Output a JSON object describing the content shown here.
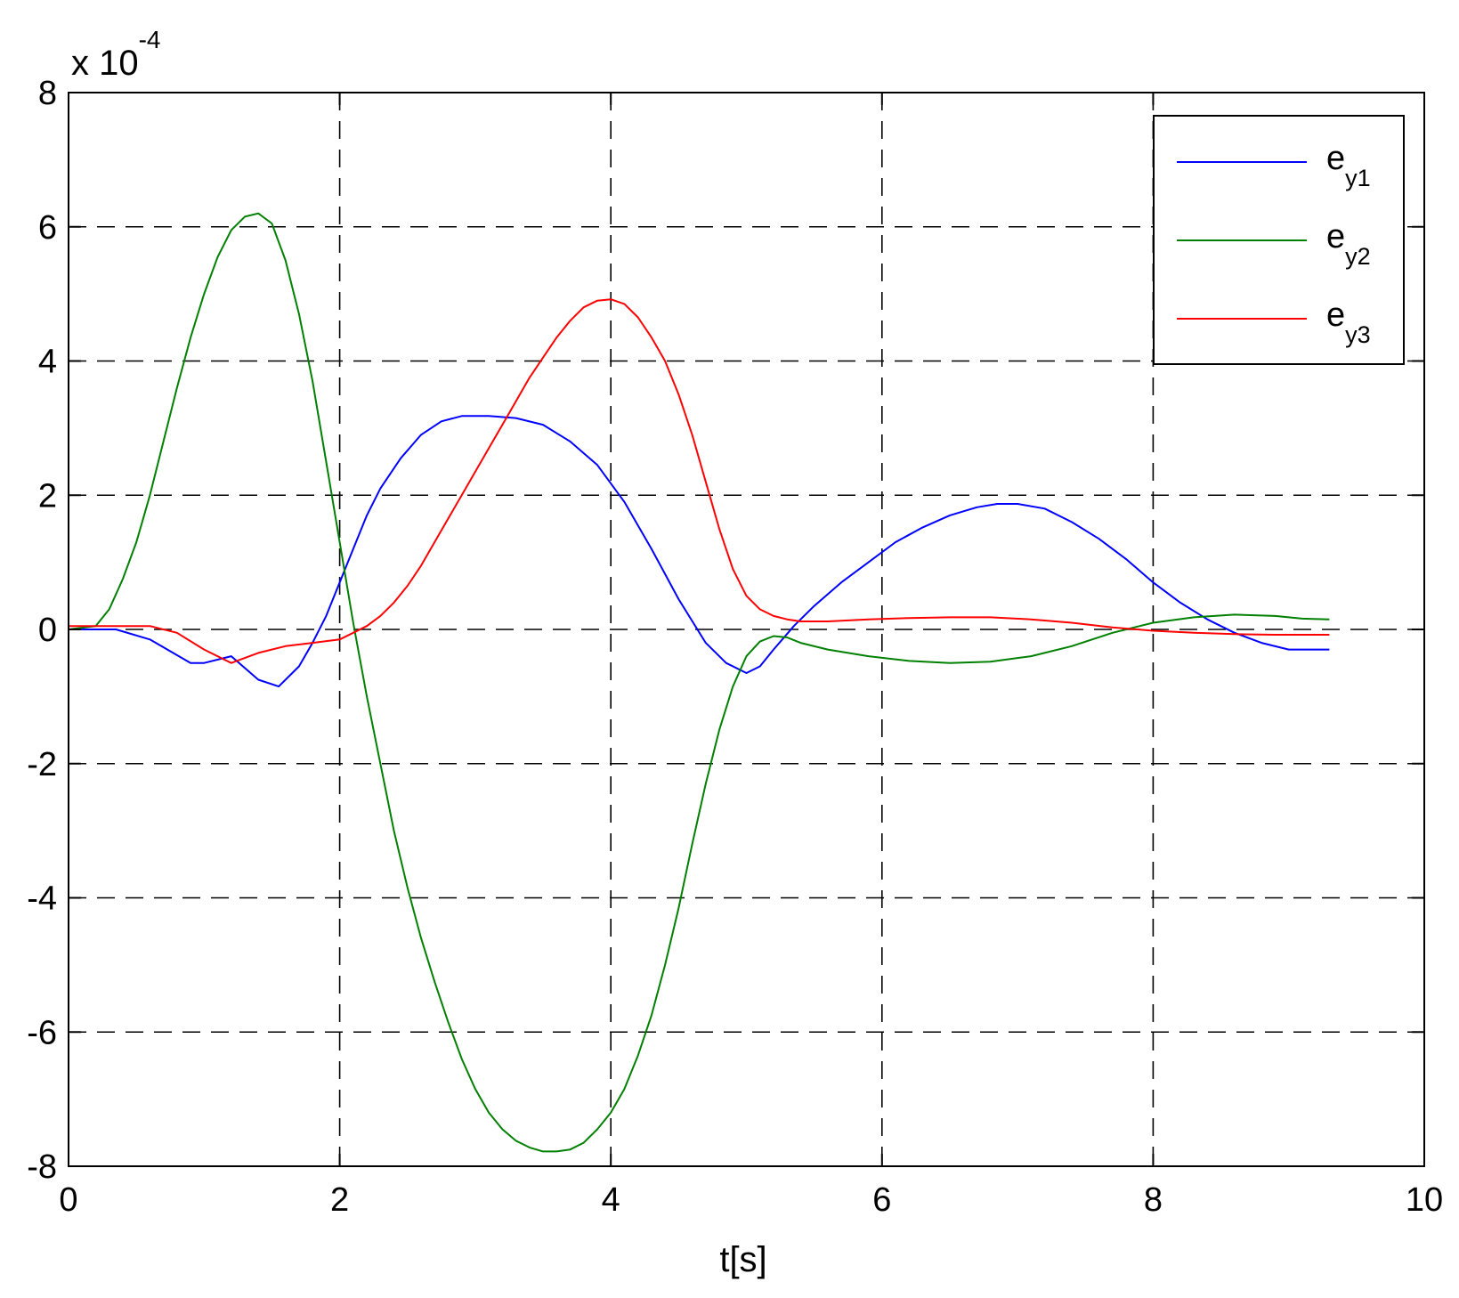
{
  "chart_data": {
    "type": "line",
    "xlabel": "t[s]",
    "ylabel": "",
    "y_multiplier": "x 10",
    "y_multiplier_exponent": "-4",
    "xlim": [
      0,
      10
    ],
    "ylim": [
      -8,
      8
    ],
    "x_ticks": [
      0,
      2,
      4,
      6,
      8,
      10
    ],
    "y_ticks": [
      -8,
      -6,
      -4,
      -2,
      0,
      2,
      4,
      6,
      8
    ],
    "x_tick_labels": [
      "0",
      "2",
      "4",
      "6",
      "8",
      "10"
    ],
    "y_tick_labels": [
      "-8",
      "-6",
      "-4",
      "-2",
      "0",
      "2",
      "4",
      "6",
      "8"
    ],
    "grid": true,
    "grid_style": "dashed",
    "legend_position": "top-right",
    "series": [
      {
        "name": "e",
        "subscript": "y1",
        "color": "#0000ff",
        "x": [
          0,
          0.35,
          0.6,
          0.9,
          1.0,
          1.2,
          1.4,
          1.55,
          1.7,
          1.8,
          1.9,
          2.0,
          2.1,
          2.2,
          2.3,
          2.45,
          2.6,
          2.75,
          2.9,
          3.1,
          3.3,
          3.5,
          3.7,
          3.9,
          4.1,
          4.3,
          4.5,
          4.7,
          4.85,
          5.0,
          5.1,
          5.2,
          5.35,
          5.5,
          5.7,
          5.9,
          6.1,
          6.3,
          6.5,
          6.7,
          6.85,
          7.0,
          7.2,
          7.4,
          7.6,
          7.8,
          8.0,
          8.2,
          8.4,
          8.6,
          8.8,
          9.0,
          9.2,
          9.3
        ],
        "y": [
          0,
          0,
          -0.15,
          -0.5,
          -0.5,
          -0.4,
          -0.75,
          -0.85,
          -0.55,
          -0.2,
          0.2,
          0.7,
          1.2,
          1.7,
          2.1,
          2.55,
          2.9,
          3.1,
          3.18,
          3.18,
          3.15,
          3.05,
          2.8,
          2.45,
          1.9,
          1.2,
          0.45,
          -0.2,
          -0.5,
          -0.65,
          -0.55,
          -0.3,
          0.05,
          0.35,
          0.7,
          1.0,
          1.3,
          1.52,
          1.7,
          1.82,
          1.87,
          1.87,
          1.8,
          1.6,
          1.35,
          1.05,
          0.7,
          0.4,
          0.15,
          -0.05,
          -0.2,
          -0.3,
          -0.3,
          -0.3
        ]
      },
      {
        "name": "e",
        "subscript": "y2",
        "color": "#008000",
        "x": [
          0,
          0.2,
          0.3,
          0.4,
          0.5,
          0.6,
          0.7,
          0.8,
          0.9,
          1.0,
          1.1,
          1.2,
          1.3,
          1.4,
          1.5,
          1.6,
          1.7,
          1.8,
          1.9,
          2.0,
          2.1,
          2.2,
          2.3,
          2.4,
          2.5,
          2.6,
          2.7,
          2.8,
          2.9,
          3.0,
          3.1,
          3.2,
          3.3,
          3.4,
          3.5,
          3.6,
          3.7,
          3.8,
          3.9,
          4.0,
          4.1,
          4.2,
          4.3,
          4.4,
          4.5,
          4.6,
          4.7,
          4.8,
          4.9,
          5.0,
          5.1,
          5.2,
          5.3,
          5.4,
          5.6,
          5.9,
          6.2,
          6.5,
          6.8,
          7.1,
          7.4,
          7.7,
          8.0,
          8.3,
          8.6,
          8.9,
          9.1,
          9.3
        ],
        "y": [
          0,
          0.05,
          0.3,
          0.75,
          1.3,
          2.0,
          2.8,
          3.6,
          4.35,
          5.0,
          5.55,
          5.95,
          6.15,
          6.2,
          6.05,
          5.5,
          4.7,
          3.7,
          2.5,
          1.3,
          0.1,
          -1.0,
          -2.0,
          -3.0,
          -3.85,
          -4.6,
          -5.25,
          -5.85,
          -6.4,
          -6.85,
          -7.2,
          -7.45,
          -7.62,
          -7.72,
          -7.78,
          -7.78,
          -7.75,
          -7.65,
          -7.45,
          -7.2,
          -6.85,
          -6.35,
          -5.75,
          -5.0,
          -4.15,
          -3.2,
          -2.3,
          -1.5,
          -0.85,
          -0.4,
          -0.18,
          -0.1,
          -0.12,
          -0.2,
          -0.3,
          -0.4,
          -0.47,
          -0.5,
          -0.48,
          -0.4,
          -0.25,
          -0.05,
          0.1,
          0.18,
          0.22,
          0.2,
          0.16,
          0.15
        ]
      },
      {
        "name": "e",
        "subscript": "y3",
        "color": "#ff0000",
        "x": [
          0,
          0.6,
          0.8,
          1.0,
          1.2,
          1.4,
          1.6,
          1.8,
          2.0,
          2.1,
          2.2,
          2.3,
          2.4,
          2.5,
          2.6,
          2.7,
          2.8,
          2.9,
          3.0,
          3.1,
          3.2,
          3.3,
          3.4,
          3.5,
          3.6,
          3.7,
          3.8,
          3.9,
          4.0,
          4.1,
          4.2,
          4.3,
          4.4,
          4.5,
          4.6,
          4.7,
          4.8,
          4.9,
          5.0,
          5.1,
          5.2,
          5.3,
          5.4,
          5.6,
          5.9,
          6.2,
          6.5,
          6.8,
          7.1,
          7.4,
          7.7,
          8.0,
          8.3,
          8.6,
          8.9,
          9.1,
          9.3
        ],
        "y": [
          0.05,
          0.05,
          -0.05,
          -0.3,
          -0.5,
          -0.35,
          -0.25,
          -0.2,
          -0.15,
          -0.05,
          0.05,
          0.2,
          0.4,
          0.65,
          0.95,
          1.3,
          1.65,
          2.0,
          2.35,
          2.7,
          3.05,
          3.4,
          3.75,
          4.05,
          4.35,
          4.6,
          4.8,
          4.9,
          4.92,
          4.85,
          4.65,
          4.35,
          4.0,
          3.5,
          2.9,
          2.2,
          1.5,
          0.9,
          0.5,
          0.3,
          0.2,
          0.15,
          0.12,
          0.12,
          0.15,
          0.17,
          0.18,
          0.18,
          0.15,
          0.1,
          0.03,
          -0.02,
          -0.05,
          -0.07,
          -0.08,
          -0.08,
          -0.08
        ]
      }
    ]
  }
}
